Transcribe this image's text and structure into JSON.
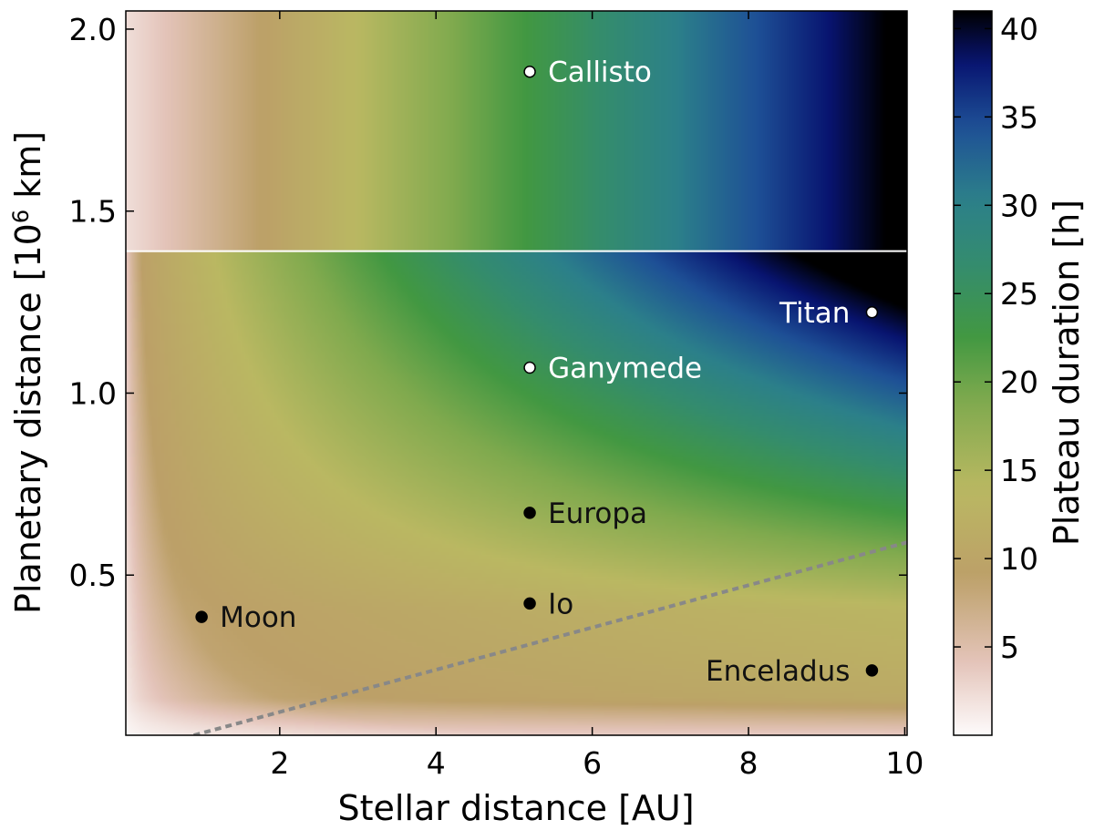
{
  "chart_data": {
    "type": "heatmap",
    "title": "",
    "xlabel": "Stellar distance [AU]",
    "ylabel": "Planetary distance [10^6 km]",
    "ylabel_parts": {
      "before": "Planetary distance [10",
      "sup": "6",
      "after": " km]"
    },
    "xlim": [
      0.03,
      10.03
    ],
    "ylim": [
      0.06,
      2.05
    ],
    "x_ticks": [
      2,
      4,
      6,
      8,
      10
    ],
    "x_tick_labels": [
      "2",
      "4",
      "6",
      "8",
      "10"
    ],
    "y_ticks": [
      0.5,
      1.0,
      1.5,
      2.0
    ],
    "y_tick_labels": [
      "0.5",
      "1.0",
      "1.5",
      "2.0"
    ],
    "colorbar": {
      "label": "Plateau duration [h]",
      "range": [
        0,
        41
      ],
      "ticks": [
        5,
        10,
        15,
        20,
        25,
        30,
        35,
        40
      ],
      "tick_labels": [
        "5",
        "10",
        "15",
        "20",
        "25",
        "30",
        "35",
        "40"
      ],
      "colormap": "gist_earth_r"
    },
    "horizontal_line": {
      "y": 1.39,
      "color": "#ffffff"
    },
    "dashed_line": {
      "x": [
        0.9,
        10.03
      ],
      "y": [
        0.06,
        0.59
      ],
      "color": "#888888"
    },
    "moons": [
      {
        "name": "Moon",
        "x": 1.0,
        "y": 0.385,
        "marker_color": "#000000",
        "label_color": "#111111",
        "label_side": "right"
      },
      {
        "name": "Io",
        "x": 5.2,
        "y": 0.422,
        "marker_color": "#000000",
        "label_color": "#111111",
        "label_side": "right"
      },
      {
        "name": "Europa",
        "x": 5.2,
        "y": 0.671,
        "marker_color": "#000000",
        "label_color": "#111111",
        "label_side": "right"
      },
      {
        "name": "Ganymede",
        "x": 5.2,
        "y": 1.07,
        "marker_color": "#ffffff",
        "label_color": "#ffffff",
        "label_side": "right"
      },
      {
        "name": "Callisto",
        "x": 5.2,
        "y": 1.883,
        "marker_color": "#ffffff",
        "label_color": "#ffffff",
        "label_side": "right"
      },
      {
        "name": "Titan",
        "x": 9.58,
        "y": 1.222,
        "marker_color": "#ffffff",
        "label_color": "#ffffff",
        "label_side": "left"
      },
      {
        "name": "Enceladus",
        "x": 9.58,
        "y": 0.238,
        "marker_color": "#000000",
        "label_color": "#111111",
        "label_side": "left"
      }
    ]
  }
}
